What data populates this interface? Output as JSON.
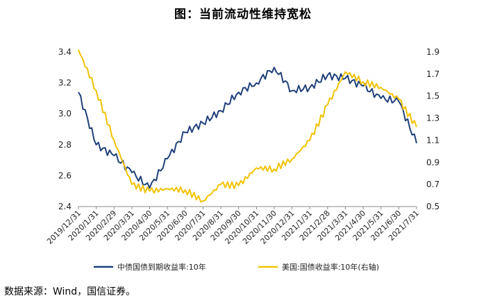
{
  "title": "图：当前流动性维持宽松",
  "source": "数据来源：Wind，国信证券。",
  "chart_data": {
    "type": "line",
    "title": "图：当前流动性维持宽松",
    "x_categories": [
      "2019/12/31",
      "2020/1/31",
      "2020/2/29",
      "2020/3/31",
      "2020/4/30",
      "2020/5/31",
      "2020/6/30",
      "2020/7/31",
      "2020/8/31",
      "2020/9/30",
      "2020/10/31",
      "2020/11/30",
      "2020/12/31",
      "2021/1/31",
      "2021/2/28",
      "2021/3/31",
      "2021/4/30",
      "2021/5/31",
      "2021/6/30",
      "2021/7/31"
    ],
    "y_left": {
      "ticks": [
        "2.4",
        "2.6",
        "2.8",
        "3.0",
        "3.2",
        "3.4"
      ],
      "ylim": [
        2.4,
        3.4
      ]
    },
    "y_right": {
      "ticks": [
        "0.5",
        "0.7",
        "0.9",
        "1.1",
        "1.3",
        "1.5",
        "1.7",
        "1.9"
      ],
      "ylim": [
        0.5,
        1.9
      ]
    },
    "series": [
      {
        "name": "中债国债到期收益率:10年",
        "axis": "left",
        "color": "#1f3f7a",
        "values": [
          3.14,
          2.8,
          2.73,
          2.62,
          2.52,
          2.71,
          2.88,
          2.94,
          3.02,
          3.14,
          3.2,
          3.3,
          3.15,
          3.17,
          3.25,
          3.23,
          3.18,
          3.1,
          3.08,
          2.81
        ]
      },
      {
        "name": "美国:国债收益率:10年(右轴)",
        "axis": "right",
        "color": "#f2c200",
        "values": [
          1.92,
          1.55,
          1.1,
          0.7,
          0.64,
          0.66,
          0.65,
          0.55,
          0.7,
          0.69,
          0.85,
          0.84,
          0.93,
          1.1,
          1.42,
          1.72,
          1.63,
          1.58,
          1.47,
          1.22
        ]
      }
    ],
    "legend_position": "bottom",
    "grid": false
  }
}
